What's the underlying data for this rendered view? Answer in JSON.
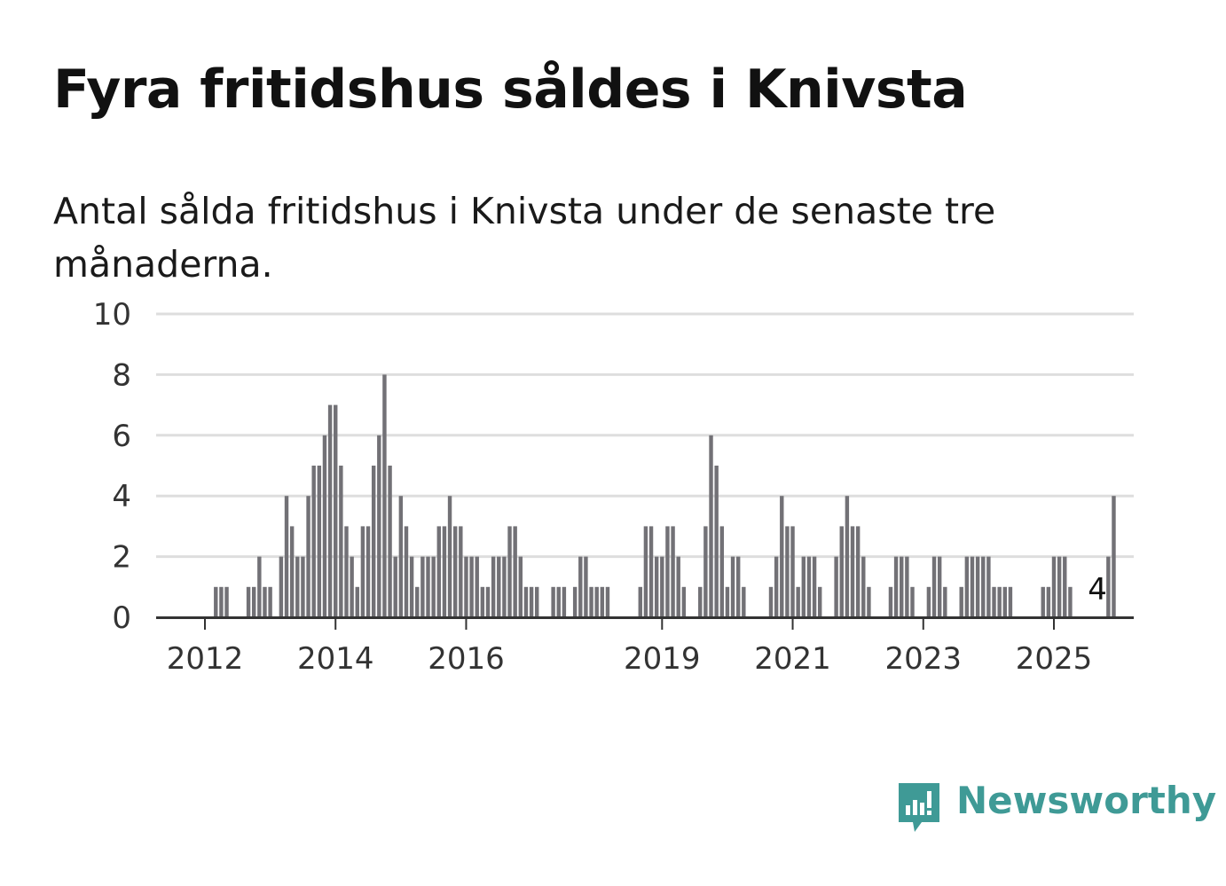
{
  "title": "Fyra fritidshus såldes i Knivsta",
  "subtitle": "Antal sålda fritidshus i Knivsta under de senaste tre månaderna.",
  "brand": {
    "name": "Newsworthy",
    "color": "#3f9a96",
    "icon": "newsworthy-chart-icon"
  },
  "colors": {
    "bar": "#727176",
    "highlight": "#1a9a96",
    "grid": "#dedede",
    "axis": "#333333"
  },
  "chart_data": {
    "type": "bar",
    "y_ticks": [
      0,
      2,
      4,
      6,
      8,
      10
    ],
    "ylim": [
      0,
      10
    ],
    "x_ticks": [
      {
        "year": 2012,
        "label": "2012"
      },
      {
        "year": 2014,
        "label": "2014"
      },
      {
        "year": 2016,
        "label": "2016"
      },
      {
        "year": 2019,
        "label": "2019"
      },
      {
        "year": 2021,
        "label": "2021"
      },
      {
        "year": 2023,
        "label": "2023"
      },
      {
        "year": 2025,
        "label": "2025"
      }
    ],
    "start": "2011-06",
    "values": [
      0,
      0,
      0,
      0,
      0,
      0,
      0,
      0,
      0,
      1,
      1,
      1,
      0,
      0,
      0,
      1,
      1,
      2,
      1,
      1,
      0,
      2,
      4,
      3,
      2,
      2,
      4,
      5,
      5,
      6,
      7,
      7,
      5,
      3,
      2,
      1,
      3,
      3,
      5,
      6,
      8,
      5,
      2,
      4,
      3,
      2,
      1,
      2,
      2,
      2,
      3,
      3,
      4,
      3,
      3,
      2,
      2,
      2,
      1,
      1,
      2,
      2,
      2,
      3,
      3,
      2,
      1,
      1,
      1,
      0,
      0,
      1,
      1,
      1,
      0,
      1,
      2,
      2,
      1,
      1,
      1,
      1,
      0,
      0,
      0,
      0,
      0,
      1,
      3,
      3,
      2,
      2,
      3,
      3,
      2,
      1,
      0,
      0,
      1,
      3,
      6,
      5,
      3,
      1,
      2,
      2,
      1,
      0,
      0,
      0,
      0,
      1,
      2,
      4,
      3,
      3,
      1,
      2,
      2,
      2,
      1,
      0,
      0,
      2,
      3,
      4,
      3,
      3,
      2,
      1,
      0,
      0,
      0,
      1,
      2,
      2,
      2,
      1,
      0,
      0,
      1,
      2,
      2,
      1,
      0,
      0,
      1,
      2,
      2,
      2,
      2,
      2,
      1,
      1,
      1,
      1,
      0,
      0,
      0,
      0,
      0,
      1,
      1,
      2,
      2,
      2,
      1,
      0,
      0,
      0,
      0,
      0,
      0,
      2,
      4
    ],
    "highlight_index": 171,
    "highlight_label": "4"
  }
}
